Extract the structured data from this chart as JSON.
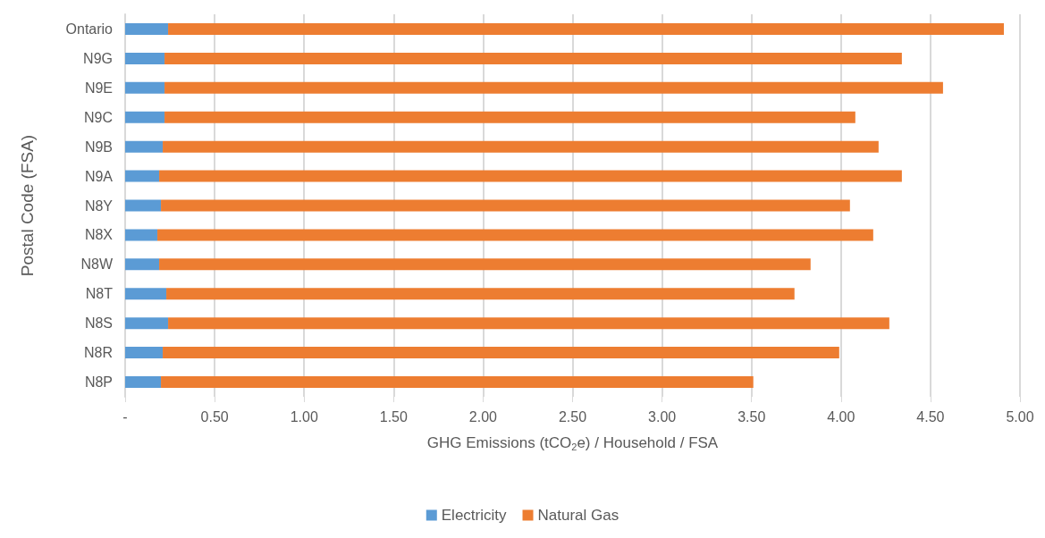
{
  "chart_data": {
    "type": "bar",
    "orientation": "horizontal",
    "stacked": true,
    "categories": [
      "Ontario",
      "N9G",
      "N9E",
      "N9C",
      "N9B",
      "N9A",
      "N8Y",
      "N8X",
      "N8W",
      "N8T",
      "N8S",
      "N8R",
      "N8P"
    ],
    "series": [
      {
        "name": "Electricity",
        "color": "#5b9bd5",
        "values": [
          0.24,
          0.22,
          0.22,
          0.22,
          0.21,
          0.19,
          0.2,
          0.18,
          0.19,
          0.23,
          0.24,
          0.21,
          0.2
        ]
      },
      {
        "name": "Natural Gas",
        "color": "#ed7d31",
        "values": [
          4.67,
          4.12,
          4.35,
          3.86,
          4.0,
          4.15,
          3.85,
          4.0,
          3.64,
          3.51,
          4.03,
          3.78,
          3.31
        ]
      }
    ],
    "xlabel": "GHG Emissions (tCO$_{2}$e) / Household / FSA",
    "ylabel": "Postal Code (FSA)",
    "xlim": [
      0,
      5
    ],
    "xticks": [
      {
        "value": 0,
        "label": "-"
      },
      {
        "value": 0.5,
        "label": "0.50"
      },
      {
        "value": 1,
        "label": "1.00"
      },
      {
        "value": 1.5,
        "label": "1.50"
      },
      {
        "value": 2,
        "label": "2.00"
      },
      {
        "value": 2.5,
        "label": "2.50"
      },
      {
        "value": 3,
        "label": "3.00"
      },
      {
        "value": 3.5,
        "label": "3.50"
      },
      {
        "value": 4,
        "label": "4.00"
      },
      {
        "value": 4.5,
        "label": "4.50"
      },
      {
        "value": 5,
        "label": "5.00"
      }
    ],
    "grid": "x",
    "legend": "bottom"
  }
}
